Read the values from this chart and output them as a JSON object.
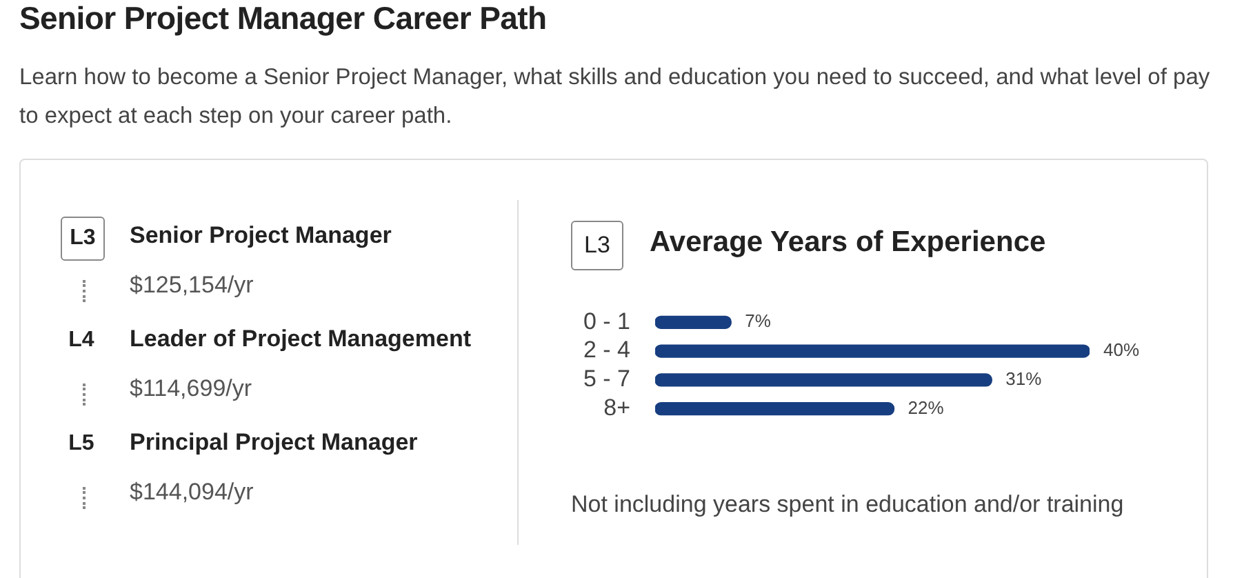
{
  "chart_data": [
    {
      "type": "other",
      "title": "Senior Project Manager Career Path",
      "subtitle": "Learn how to become a Senior Project Manager, what skills and education you need to succeed, and what level of pay to expect at each step on your career path.",
      "annotations": [
        "L3",
        "Senior Project Manager",
        "$125,154/yr",
        "L4",
        "Leader of Project Management",
        "$114,699/yr",
        "L5",
        "Principal Project Manager",
        "$144,094/yr"
      ]
    },
    {
      "type": "bar",
      "orientation": "horizontal",
      "title": "Average Years of Experience",
      "categories": [
        "0 - 1",
        "2 - 4",
        "5 - 7",
        "8+"
      ],
      "values": [
        7,
        40,
        31,
        22
      ],
      "color": "#173e80",
      "xlim": [
        0,
        40
      ],
      "value_labels": [
        "7%",
        "40%",
        "31%",
        "22%"
      ],
      "grid": false,
      "legend": false,
      "tick_labels": "y",
      "annotations": [
        "L3",
        "Not including years spent in education and/or training"
      ]
    }
  ]
}
